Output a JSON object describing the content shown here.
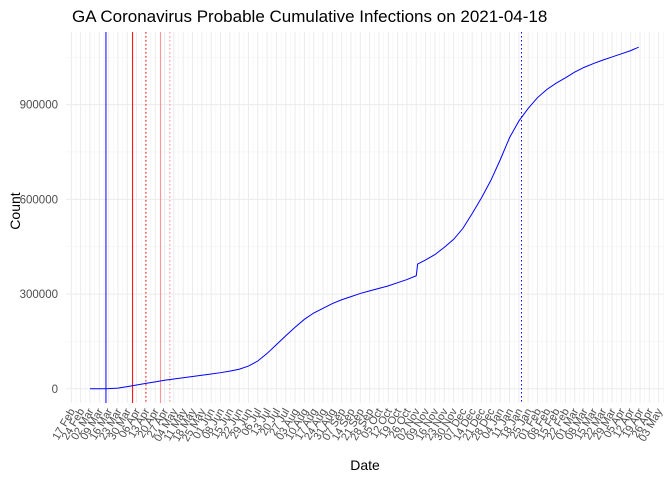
{
  "chart_data": {
    "type": "line",
    "title": "GA Coronavirus Probable Cumulative Infections on 2021-04-18",
    "xlabel": "Date",
    "ylabel": "Count",
    "x_start": "2020-02-17",
    "x_end": "2021-05-03",
    "xlim": [
      "2020-02-13",
      "2021-05-07"
    ],
    "ylim": [
      -45000,
      1130000
    ],
    "y_ticks": [
      0,
      300000,
      600000,
      900000
    ],
    "y_tick_labels": [
      "0",
      "300000",
      "600000",
      "900000"
    ],
    "x_tick_labels": [
      "17 Feb",
      "24 Feb",
      "02 Mar",
      "09 Mar",
      "16 Mar",
      "23 Mar",
      "30 Mar",
      "06 Apr",
      "13 Apr",
      "20 Apr",
      "27 Apr",
      "04 May",
      "11 May",
      "18 May",
      "25 May",
      "01 Jun",
      "08 Jun",
      "15 Jun",
      "22 Jun",
      "29 Jun",
      "06 Jul",
      "13 Jul",
      "20 Jul",
      "27 Jul",
      "03 Aug",
      "10 Aug",
      "17 Aug",
      "24 Aug",
      "31 Aug",
      "07 Sep",
      "14 Sep",
      "21 Sep",
      "28 Sep",
      "05 Oct",
      "12 Oct",
      "19 Oct",
      "26 Oct",
      "02 Nov",
      "09 Nov",
      "16 Nov",
      "23 Nov",
      "30 Nov",
      "07 Dec",
      "14 Dec",
      "21 Dec",
      "28 Dec",
      "04 Jan",
      "11 Jan",
      "18 Jan",
      "25 Jan",
      "01 Feb",
      "08 Feb",
      "15 Feb",
      "22 Feb",
      "01 Mar",
      "08 Mar",
      "15 Mar",
      "22 Mar",
      "29 Mar",
      "05 Apr",
      "12 Apr",
      "19 Apr",
      "26 Apr",
      "03 May"
    ],
    "grid": true,
    "series": [
      {
        "color": "#0000ff",
        "points": [
          [
            "2020-03-02",
            0
          ],
          [
            "2020-03-09",
            100
          ],
          [
            "2020-03-16",
            500
          ],
          [
            "2020-03-23",
            2000
          ],
          [
            "2020-03-30",
            7000
          ],
          [
            "2020-04-06",
            12000
          ],
          [
            "2020-04-13",
            17000
          ],
          [
            "2020-04-20",
            22000
          ],
          [
            "2020-04-27",
            27000
          ],
          [
            "2020-05-04",
            31000
          ],
          [
            "2020-05-11",
            35000
          ],
          [
            "2020-05-18",
            39000
          ],
          [
            "2020-05-25",
            43000
          ],
          [
            "2020-06-01",
            47000
          ],
          [
            "2020-06-08",
            51000
          ],
          [
            "2020-06-15",
            56000
          ],
          [
            "2020-06-22",
            62000
          ],
          [
            "2020-06-29",
            72000
          ],
          [
            "2020-07-06",
            88000
          ],
          [
            "2020-07-13",
            112000
          ],
          [
            "2020-07-20",
            140000
          ],
          [
            "2020-07-27",
            168000
          ],
          [
            "2020-08-03",
            195000
          ],
          [
            "2020-08-10",
            220000
          ],
          [
            "2020-08-17",
            240000
          ],
          [
            "2020-08-24",
            255000
          ],
          [
            "2020-08-31",
            270000
          ],
          [
            "2020-09-07",
            282000
          ],
          [
            "2020-09-14",
            292000
          ],
          [
            "2020-09-21",
            302000
          ],
          [
            "2020-09-28",
            310000
          ],
          [
            "2020-10-05",
            318000
          ],
          [
            "2020-10-12",
            326000
          ],
          [
            "2020-10-19",
            336000
          ],
          [
            "2020-10-26",
            346000
          ],
          [
            "2020-11-02",
            358000
          ],
          [
            "2020-11-03",
            395000
          ],
          [
            "2020-11-09",
            408000
          ],
          [
            "2020-11-16",
            425000
          ],
          [
            "2020-11-23",
            448000
          ],
          [
            "2020-11-30",
            473000
          ],
          [
            "2020-12-07",
            508000
          ],
          [
            "2020-12-14",
            555000
          ],
          [
            "2020-12-21",
            605000
          ],
          [
            "2020-12-28",
            660000
          ],
          [
            "2021-01-04",
            725000
          ],
          [
            "2021-01-11",
            795000
          ],
          [
            "2021-01-18",
            848000
          ],
          [
            "2021-01-25",
            888000
          ],
          [
            "2021-02-01",
            922000
          ],
          [
            "2021-02-08",
            948000
          ],
          [
            "2021-02-15",
            968000
          ],
          [
            "2021-02-22",
            985000
          ],
          [
            "2021-03-01",
            1003000
          ],
          [
            "2021-03-08",
            1018000
          ],
          [
            "2021-03-15",
            1030000
          ],
          [
            "2021-03-22",
            1041000
          ],
          [
            "2021-03-29",
            1051000
          ],
          [
            "2021-04-05",
            1061000
          ],
          [
            "2021-04-12",
            1071000
          ],
          [
            "2021-04-18",
            1082000
          ]
        ]
      }
    ],
    "vertical_lines": [
      {
        "date": "2020-03-14",
        "color": "#0000ff",
        "style": "solid"
      },
      {
        "date": "2020-04-03",
        "color": "#ff0000",
        "style": "solid"
      },
      {
        "date": "2020-04-13",
        "color": "#ff0000",
        "style": "dotted"
      },
      {
        "date": "2020-04-24",
        "color": "#ff8c8c",
        "style": "solid"
      },
      {
        "date": "2020-05-01",
        "color": "#ff8c8c",
        "style": "dotted"
      },
      {
        "date": "2021-01-20",
        "color": "#0000ff",
        "style": "dotted"
      }
    ]
  }
}
